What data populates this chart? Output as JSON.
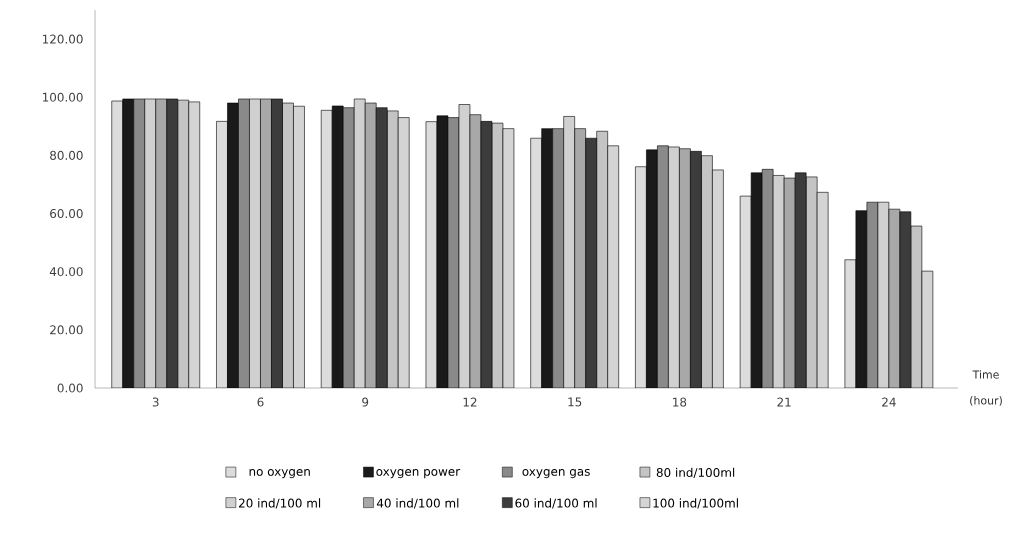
{
  "chart_data": {
    "type": "bar",
    "xlabel": "Time (hour)",
    "categories": [
      "3",
      "6",
      "9",
      "12",
      "15",
      "18",
      "21",
      "24"
    ],
    "series": [
      {
        "name": "no oxygen",
        "color": "#dcdcdc",
        "values": [
          98.7,
          91.7,
          95.5,
          91.6,
          85.9,
          76.1,
          66.0,
          44.1
        ]
      },
      {
        "name": "oxygen power",
        "color": "#1a1a1a",
        "values": [
          99.4,
          98.0,
          97.0,
          93.6,
          89.2,
          81.9,
          74.0,
          61.0
        ]
      },
      {
        "name": "oxygen gas",
        "color": "#8a8a8a",
        "values": [
          99.4,
          99.4,
          96.4,
          93.0,
          89.2,
          83.3,
          75.2,
          63.9
        ]
      },
      {
        "name": "20 ind/100 ml",
        "color": "#d0d0d0",
        "values": [
          99.4,
          99.4,
          99.4,
          97.5,
          93.4,
          82.9,
          73.1,
          63.9
        ]
      },
      {
        "name": "40 ind/100 ml",
        "color": "#a8a8a8",
        "values": [
          99.4,
          99.4,
          98.0,
          94.0,
          89.2,
          82.3,
          72.2,
          61.5
        ]
      },
      {
        "name": "60 ind/100 ml",
        "color": "#3c3c3c",
        "values": [
          99.4,
          99.4,
          96.4,
          91.7,
          85.9,
          81.4,
          74.0,
          60.6
        ]
      },
      {
        "name": "80 ind/100ml",
        "color": "#c4c4c4",
        "values": [
          99.0,
          98.0,
          95.3,
          91.1,
          88.3,
          79.9,
          72.6,
          55.7
        ]
      },
      {
        "name": "100 ind/100ml",
        "color": "#d4d4d4",
        "values": [
          98.4,
          96.9,
          93.0,
          89.2,
          83.3,
          75.0,
          67.3,
          40.2
        ]
      }
    ],
    "ylim": [
      0,
      130
    ],
    "yticks": [
      {
        "value": 0,
        "label": "0.00"
      },
      {
        "value": 20,
        "label": "20.00"
      },
      {
        "value": 40,
        "label": "40.00"
      },
      {
        "value": 60,
        "label": "60.00"
      },
      {
        "value": 80,
        "label": "80.00"
      },
      {
        "value": 100,
        "label": "100.00"
      },
      {
        "value": 120,
        "label": "120.00"
      }
    ],
    "grid": false,
    "legend": "bottom"
  }
}
